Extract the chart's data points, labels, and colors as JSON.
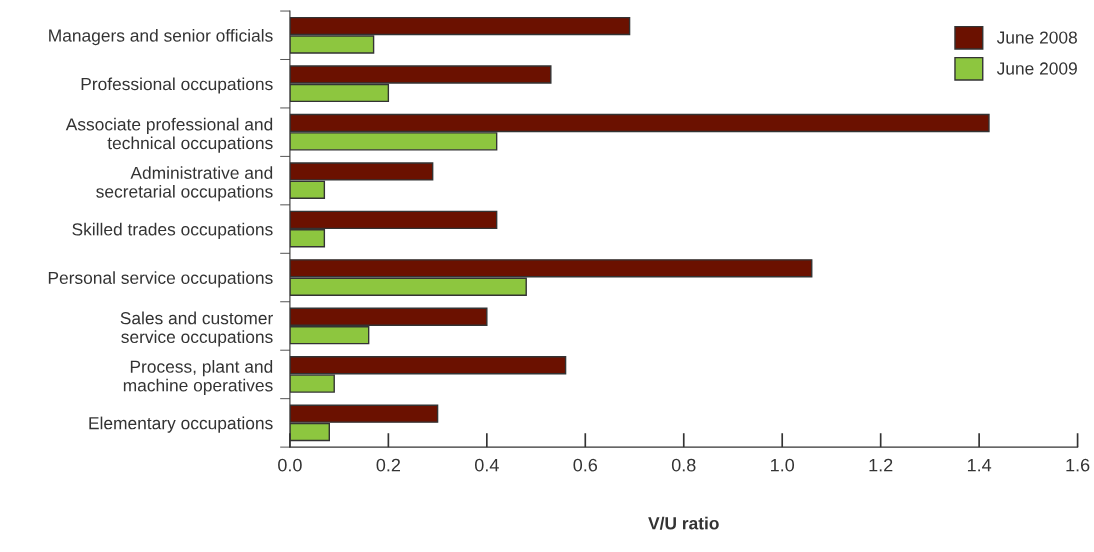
{
  "chart_data": {
    "type": "bar",
    "orientation": "horizontal",
    "xlabel": "V/U ratio",
    "categories": [
      "Managers and senior officials",
      "Professional occupations",
      "Associate professional and\ntechnical occupations",
      "Administrative and\nsecretarial occupations",
      "Skilled trades occupations",
      "Personal service occupations",
      "Sales and customer\nservice occupations",
      "Process, plant and\nmachine operatives",
      "Elementary occupations"
    ],
    "series": [
      {
        "name": "June 2008",
        "color": "#6b1100",
        "values": [
          0.69,
          0.53,
          1.42,
          0.29,
          0.42,
          1.06,
          0.4,
          0.56,
          0.3
        ]
      },
      {
        "name": "June 2009",
        "color": "#8dc63f",
        "values": [
          0.17,
          0.2,
          0.42,
          0.07,
          0.07,
          0.48,
          0.16,
          0.09,
          0.08
        ]
      }
    ],
    "xlim": [
      0,
      1.6
    ],
    "xticks": [
      {
        "value": 0,
        "label": "0.0"
      },
      {
        "value": 0.2,
        "label": "0.2"
      },
      {
        "value": 0.4,
        "label": "0.4"
      },
      {
        "value": 0.6,
        "label": "0.6"
      },
      {
        "value": 0.8,
        "label": "0.8"
      },
      {
        "value": 1.0,
        "label": "1.0"
      },
      {
        "value": 1.2,
        "label": "1.2"
      },
      {
        "value": 1.4,
        "label": "1.4"
      },
      {
        "value": 1.6,
        "label": "1.6"
      }
    ],
    "legend": "top right",
    "grid": false
  }
}
